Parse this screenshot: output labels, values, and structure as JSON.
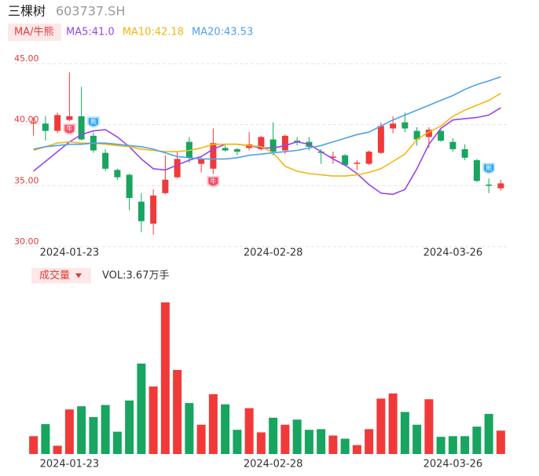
{
  "header": {
    "name": "三棵树",
    "code": "603737.SH"
  },
  "chart_data": [
    {
      "type": "candlestick",
      "legend_button": "MA/牛熊",
      "categories": [
        null,
        null,
        null,
        "2024-01-23",
        null,
        null,
        null,
        null,
        null,
        null,
        null,
        null,
        null,
        null,
        null,
        null,
        null,
        null,
        null,
        null,
        "2024-02-28",
        null,
        null,
        null,
        null,
        null,
        null,
        null,
        null,
        null,
        null,
        null,
        null,
        null,
        null,
        "2024-03-26",
        null,
        null,
        null,
        null
      ],
      "open": [
        39.7,
        39.7,
        39.1,
        40.0,
        40.3,
        38.7,
        37.3,
        35.9,
        35.5,
        33.3,
        31.5,
        34.0,
        35.3,
        38.2,
        36.4,
        36.0,
        37.7,
        37.6,
        37.7,
        37.6,
        38.4,
        37.5,
        38.3,
        38.2,
        37.4,
        36.9,
        37.1,
        36.4,
        36.4,
        37.3,
        39.3,
        39.8,
        39.1,
        38.6,
        39.1,
        38.2,
        37.6,
        36.7,
        34.7,
        34.4
      ],
      "high": [
        40.2,
        40.3,
        40.6,
        43.9,
        42.7,
        39.0,
        37.6,
        36.0,
        35.6,
        34.0,
        34.3,
        37.1,
        37.4,
        38.6,
        37.0,
        39.3,
        37.9,
        37.7,
        39.0,
        38.7,
        39.8,
        38.8,
        38.6,
        38.6,
        37.6,
        37.4,
        37.2,
        36.7,
        37.5,
        39.8,
        40.3,
        40.6,
        39.4,
        39.4,
        39.2,
        38.5,
        38.0,
        36.8,
        35.2,
        35.1
      ],
      "low": [
        38.7,
        38.3,
        38.9,
        39.9,
        38.3,
        37.3,
        35.8,
        35.1,
        32.6,
        30.8,
        30.6,
        33.9,
        35.2,
        36.5,
        35.7,
        35.6,
        37.4,
        37.1,
        37.5,
        37.5,
        37.1,
        37.2,
        37.9,
        37.5,
        36.4,
        36.4,
        36.2,
        35.9,
        36.3,
        37.2,
        38.9,
        39.0,
        37.9,
        37.7,
        38.2,
        37.4,
        36.7,
        34.9,
        34.0,
        34.2
      ],
      "close": [
        39.8,
        39.1,
        40.4,
        40.3,
        38.4,
        37.5,
        36.0,
        35.3,
        33.6,
        31.7,
        33.8,
        35.1,
        36.8,
        36.9,
        36.8,
        38.1,
        37.5,
        37.4,
        38.0,
        38.6,
        37.4,
        38.7,
        38.2,
        37.8,
        37.3,
        37.0,
        36.3,
        36.5,
        37.4,
        39.5,
        39.7,
        39.3,
        38.4,
        39.2,
        38.3,
        37.6,
        36.9,
        35.0,
        34.6,
        34.8
      ],
      "up_color": "#f03a3a",
      "down_color": "#17a55f",
      "signals": [
        null,
        null,
        null,
        "牛",
        null,
        "熊",
        null,
        null,
        null,
        null,
        null,
        null,
        null,
        null,
        null,
        "牛",
        null,
        null,
        null,
        null,
        null,
        null,
        null,
        null,
        null,
        null,
        null,
        null,
        null,
        null,
        null,
        null,
        null,
        null,
        null,
        null,
        null,
        null,
        "熊",
        null
      ],
      "series": [
        {
          "name": "MA5:41.0",
          "color": "#9b45e6",
          "values": [
            35.8,
            36.6,
            37.4,
            38.2,
            38.8,
            39.1,
            39.2,
            38.6,
            37.8,
            36.8,
            36.0,
            35.9,
            36.3,
            36.7,
            37.0,
            37.6,
            38.0,
            38.0,
            37.9,
            37.7,
            37.7,
            37.9,
            38.2,
            38.0,
            37.4,
            36.8,
            36.3,
            35.6,
            34.7,
            34.0,
            33.9,
            34.3,
            36.0,
            38.0,
            39.3,
            40.0,
            40.1,
            40.2,
            40.4,
            41.0
          ]
        },
        {
          "name": "MA10:42.18",
          "color": "#f2b70f",
          "values": [
            37.5,
            37.8,
            38.1,
            38.2,
            38.1,
            38.1,
            38.0,
            37.9,
            37.8,
            37.6,
            37.5,
            37.4,
            37.4,
            37.5,
            37.7,
            38.0,
            38.0,
            38.0,
            37.9,
            37.8,
            37.3,
            36.2,
            35.8,
            35.6,
            35.5,
            35.4,
            35.4,
            35.5,
            35.7,
            36.0,
            36.6,
            37.2,
            38.4,
            39.0,
            39.5,
            40.3,
            40.8,
            41.2,
            41.6,
            42.18
          ]
        },
        {
          "name": "MA20:43.53",
          "color": "#4da1ec",
          "values": [
            37.6,
            37.8,
            37.9,
            38.0,
            38.0,
            38.1,
            38.1,
            38.0,
            37.9,
            37.8,
            37.6,
            37.3,
            37.0,
            36.9,
            36.8,
            36.8,
            36.8,
            36.9,
            37.1,
            37.2,
            37.3,
            37.4,
            37.5,
            37.7,
            37.9,
            38.2,
            38.5,
            38.8,
            39.0,
            39.5,
            40.0,
            40.4,
            40.8,
            41.2,
            41.6,
            42.0,
            42.5,
            42.9,
            43.2,
            43.53
          ]
        }
      ],
      "ylim": [
        30,
        45
      ],
      "yticks": [
        {
          "value": 30,
          "label": "30.00"
        },
        {
          "value": 35,
          "label": "35.00"
        },
        {
          "value": 40,
          "label": "40.00"
        },
        {
          "value": 45,
          "label": "45.00"
        }
      ],
      "grid": true
    },
    {
      "type": "bar",
      "indicator": "成交量",
      "legend_label": "VOL:3.67万手",
      "categories": [
        null,
        null,
        null,
        "2024-01-23",
        null,
        null,
        null,
        null,
        null,
        null,
        null,
        null,
        null,
        null,
        null,
        null,
        null,
        null,
        null,
        null,
        "2024-02-28",
        null,
        null,
        null,
        null,
        null,
        null,
        null,
        null,
        null,
        null,
        null,
        null,
        null,
        null,
        "2024-03-26",
        null,
        null,
        null,
        null
      ],
      "values": [
        2.8,
        4.7,
        1.3,
        7.0,
        7.5,
        5.8,
        7.7,
        3.5,
        8.4,
        14.2,
        10.6,
        23.8,
        13.2,
        8.0,
        4.6,
        9.4,
        7.8,
        3.8,
        7.2,
        3.4,
        5.7,
        4.6,
        5.4,
        3.8,
        3.9,
        2.9,
        2.4,
        1.4,
        3.9,
        8.7,
        9.5,
        6.6,
        4.6,
        8.6,
        2.7,
        2.8,
        2.8,
        4.3,
        6.3,
        3.67
      ]
    }
  ]
}
